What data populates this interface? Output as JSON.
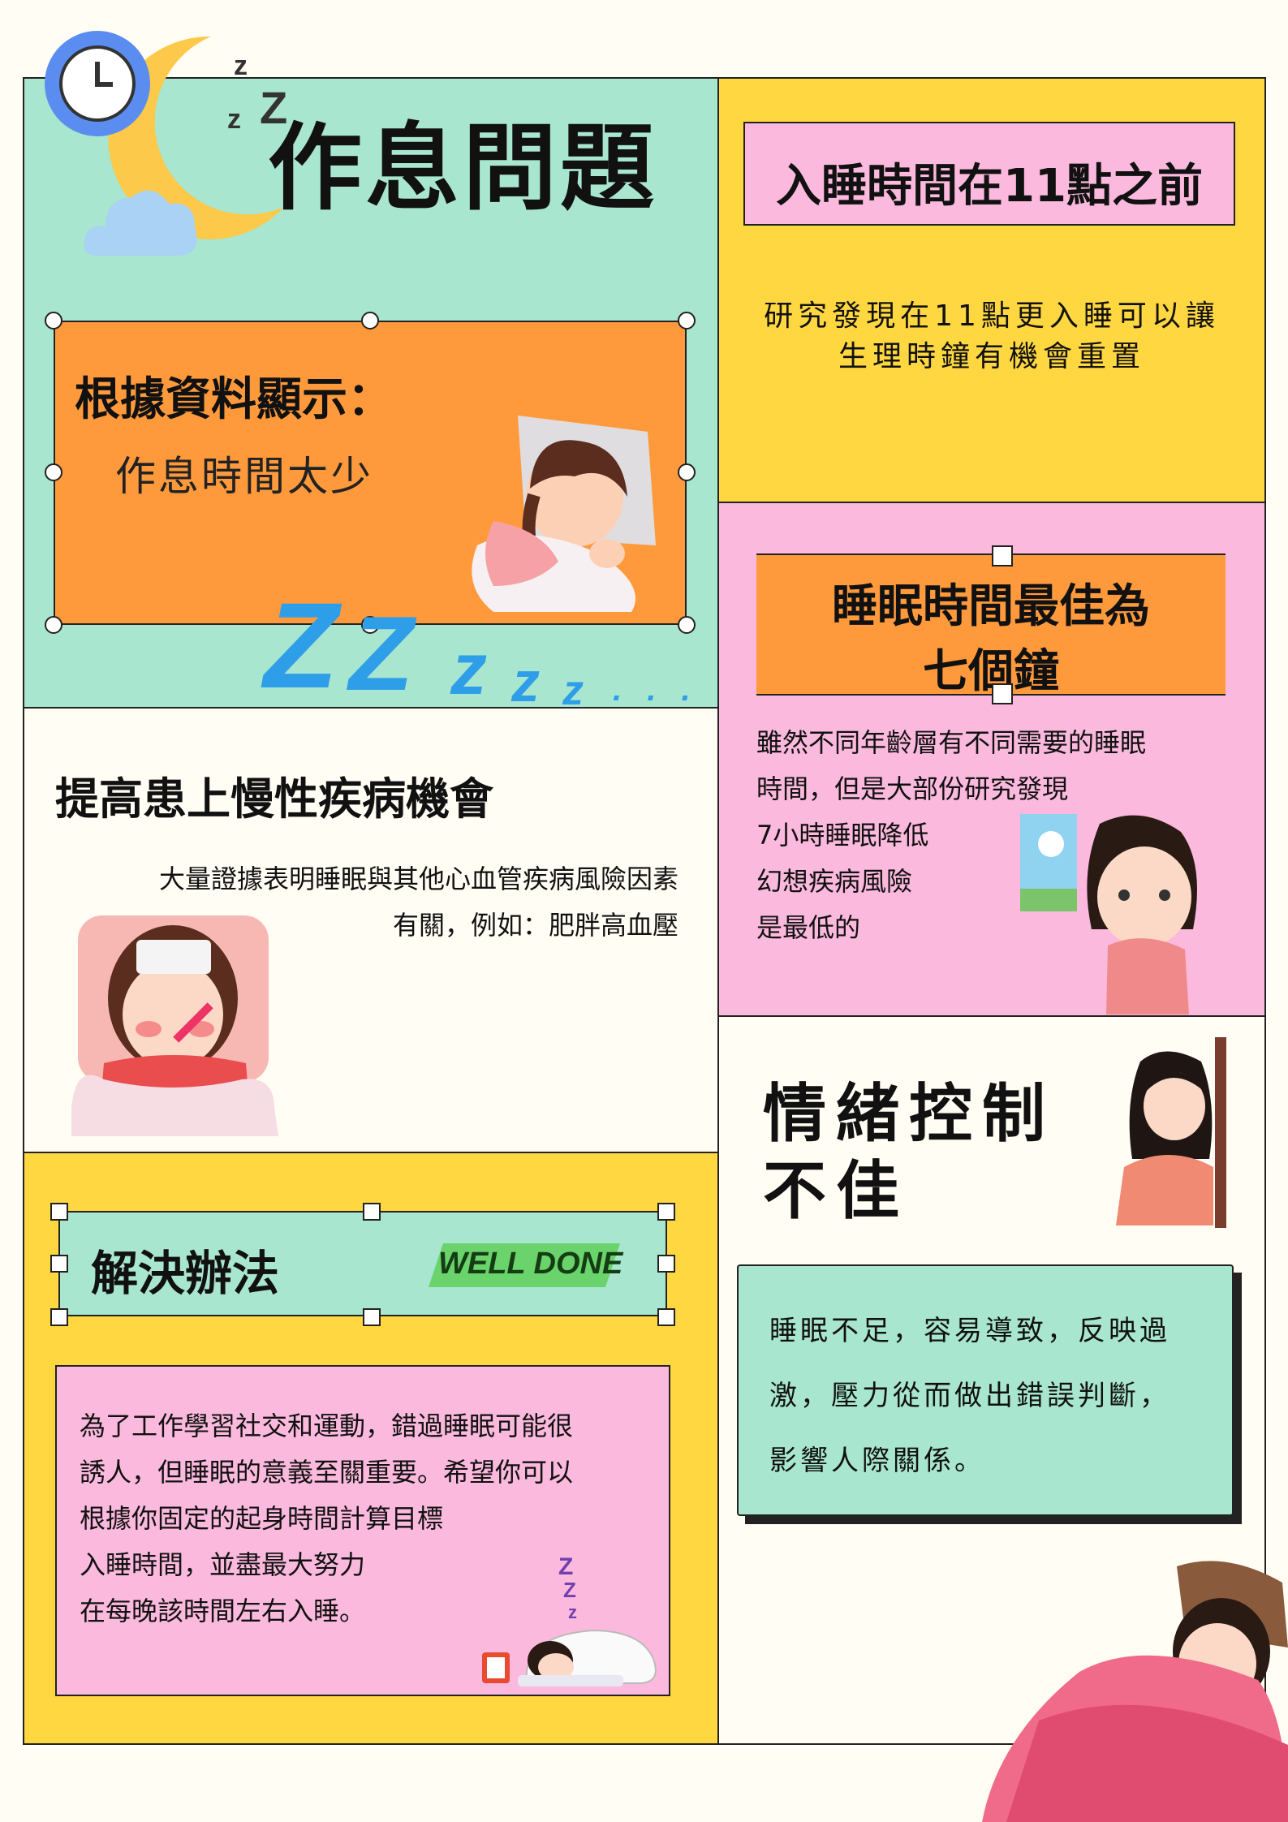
{
  "header": {
    "title": "作息問題"
  },
  "data_card": {
    "heading": "根據資料顯示：",
    "subtext": "作息時間太少"
  },
  "sleep_before_11": {
    "heading": "入睡時間在11點之前",
    "body_line1": "研究發現在11點更入睡可以讓",
    "body_line2": "生理時鐘有機會重置"
  },
  "best_sleep": {
    "heading_line1": "睡眠時間最佳為",
    "heading_line2": "七個鐘",
    "body_lines": [
      "雖然不同年齡層有不同需要的睡眠",
      "時間，但是大部份研究發現",
      "7小時睡眠降低",
      "幻想疾病風險",
      "是最低的"
    ]
  },
  "chronic": {
    "heading": "提高患上慢性疾病機會",
    "body_line1": "大量證據表明睡眠與其他心血管疾病風險因素",
    "body_line2": "有關，例如：肥胖高血壓"
  },
  "emotion": {
    "heading_line1": "情緒控制",
    "heading_line2": "不佳",
    "card_lines": [
      "睡眠不足，容易導致，反映過",
      "激，壓力從而做出錯誤判斷，",
      "影響人際關係。"
    ]
  },
  "solution": {
    "heading": "解決辦法",
    "badge": "WELL DONE",
    "body_lines": [
      "為了工作學習社交和運動，錯過睡眠可能很",
      "誘人，但睡眠的意義至關重要。希望你可以",
      "根據你固定的起身時間計算目標",
      "入睡時間，並盡最大努力",
      "在每晚該時間左右入睡。"
    ]
  },
  "decor": {
    "zz_small": "z z Z",
    "zz_big": "Z Z z z z . . ."
  },
  "colors": {
    "mint": "#a8e6cf",
    "yellow": "#ffd740",
    "pink": "#fbb9dd",
    "orange": "#ff9a3c",
    "cream": "#fffdf4",
    "blue": "#2f9ee8"
  }
}
